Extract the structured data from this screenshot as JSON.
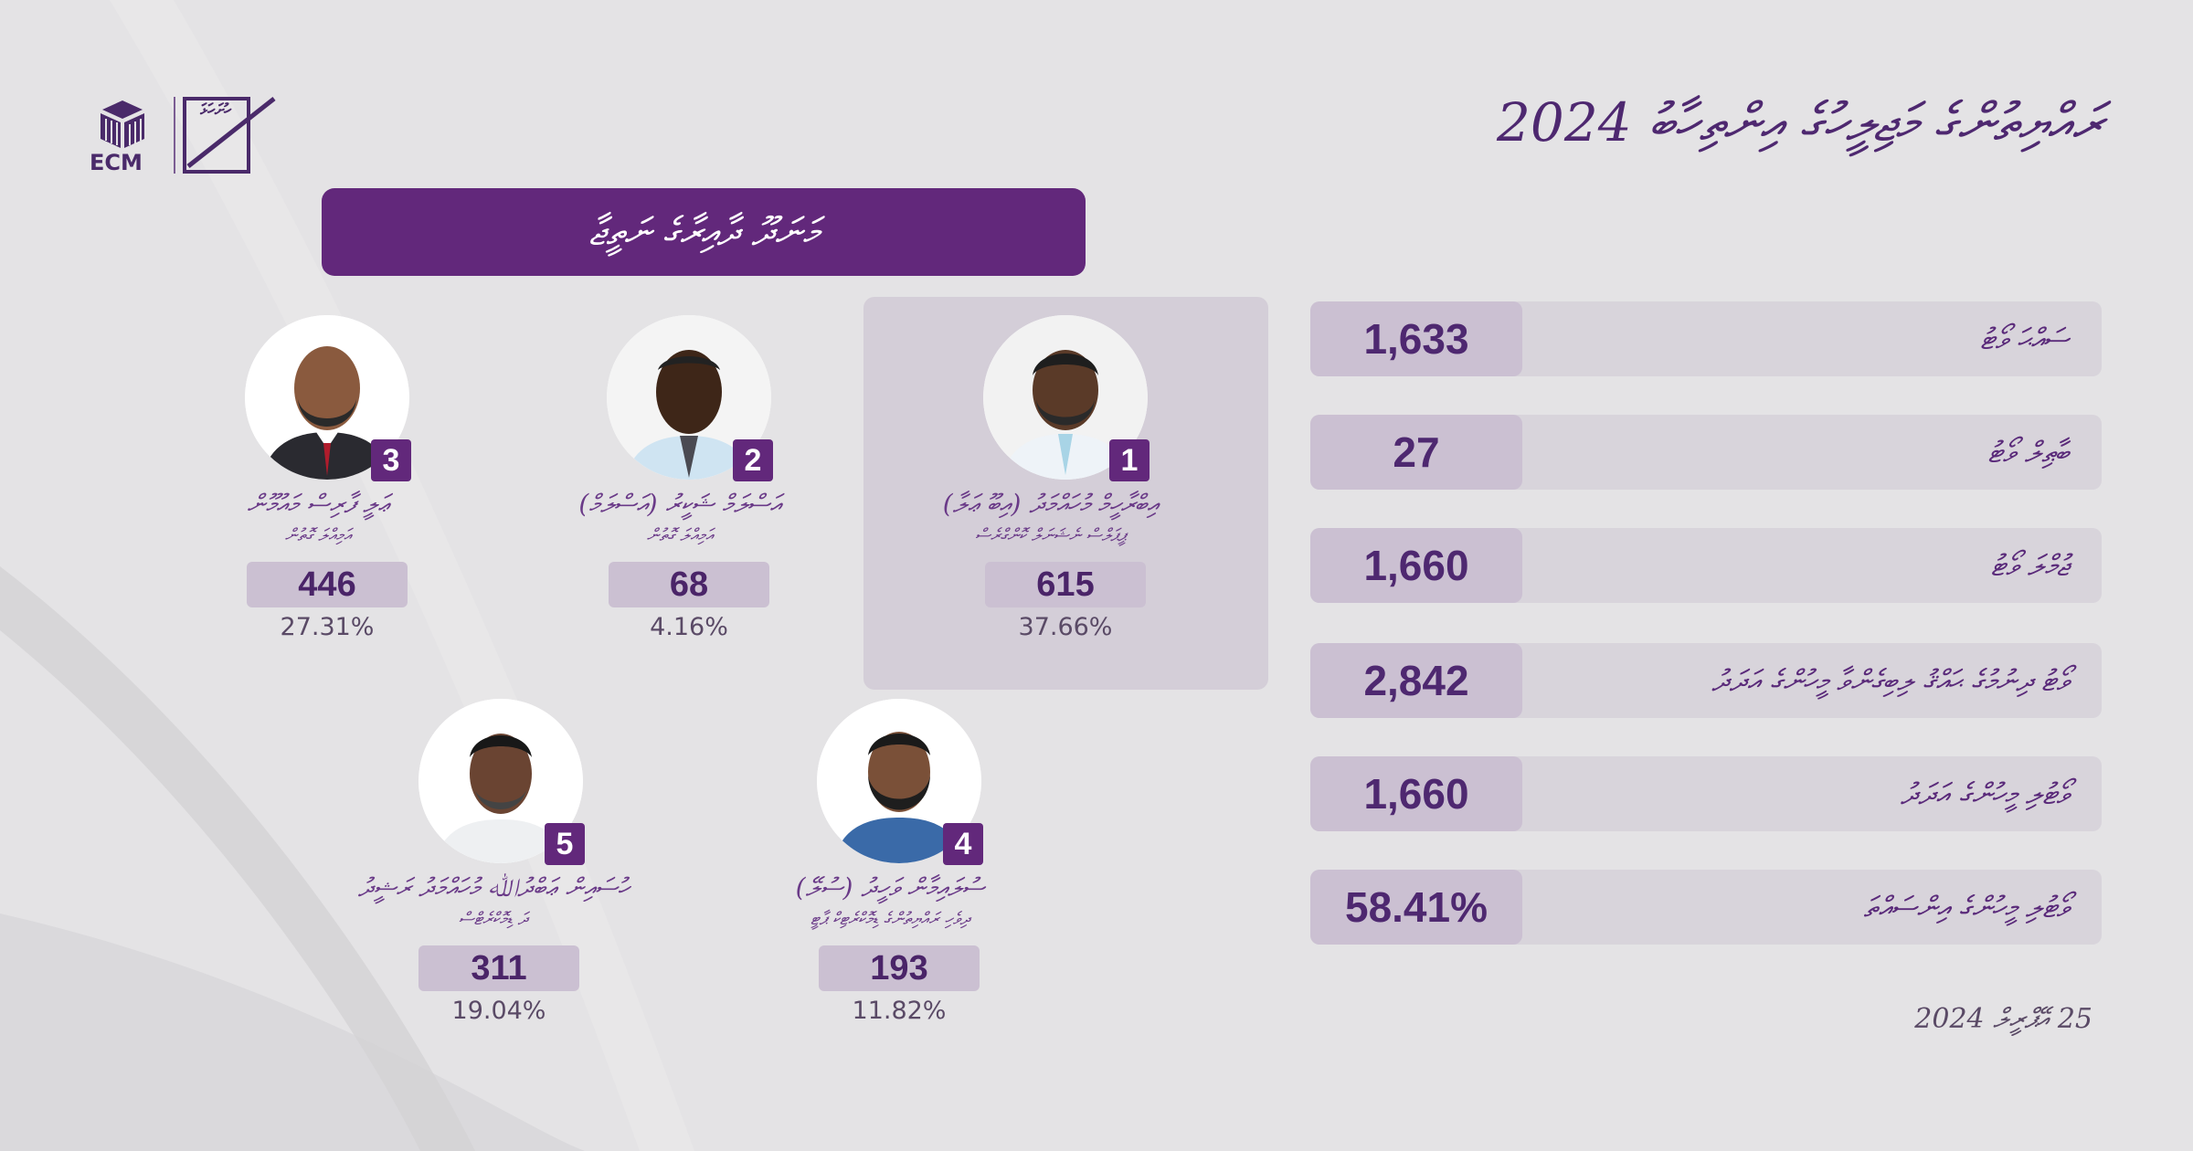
{
  "header": {
    "logo_text": "ECM",
    "logo_mark_text": "ހުށަހަޅަ",
    "title": "ރައްޔިތުންގެ މަޖިލީހުގެ އިންތިހާބު 2024",
    "subtitle": "މަނަދޫ ދާއިރާގެ ނަތީޖާ"
  },
  "candidates": [
    {
      "number": "1",
      "name": "އިބްރާހީމް މުހައްމަދު (އިބޫ ޢަލާ)",
      "party": "ޕީޕަލްސް ނެޝަނަލް ކޮންގްރެސް",
      "votes": "615",
      "percent": "37.66%",
      "winner": true
    },
    {
      "number": "2",
      "name": "އަސްލަމް ޝަކީރު (އަސްލަމް)",
      "party": "އަމިއްލަ ގޮތުން",
      "votes": "68",
      "percent": "4.16%",
      "winner": false
    },
    {
      "number": "3",
      "name": "ޢަލީ ފާރިސް މައުމޫން",
      "party": "އަމިއްލަ ގޮތުން",
      "votes": "446",
      "percent": "27.31%",
      "winner": false
    },
    {
      "number": "4",
      "name": "ސުލައިމާން ވަހީދު (ސުލޭ)",
      "party": "ދިވެހި ރައްޔިތުންގެ ޑިމޮކްރެޓިކް ޕާޓީ",
      "votes": "193",
      "percent": "11.82%",
      "winner": false
    },
    {
      "number": "5",
      "name": "ހުސައިން ޢަބްދުﷲ މުހައްމަދު ރަޝީދު",
      "party": "ދަ ޑިމޮކްރެޓްސް",
      "votes": "311",
      "percent": "19.04%",
      "winner": false
    }
  ],
  "stats": [
    {
      "label": "ސައްޙަ ވޯޓު",
      "value": "1,633"
    },
    {
      "label": "ބާޠިލް ވޯޓު",
      "value": "27"
    },
    {
      "label": "ޖުމްލަ ވޯޓު",
      "value": "1,660"
    },
    {
      "label": "ވޯޓު ދިނުމުގެ ޙައްޤު ލިބިގެންވާ މީހުންގެ އަދަދު",
      "value": "2,842"
    },
    {
      "label": "ވޯޓުލި މީހުންގެ އަދަދު",
      "value": "1,660"
    },
    {
      "label": "ވޯޓުލި މީހުންގެ އިންސައްތަ",
      "value": "58.41%"
    }
  ],
  "date": "25 އޭޕްރީލް 2024",
  "colors": {
    "brand": "#62287b",
    "panel": "#d4ced8",
    "badge": "#cbc0d2",
    "background": "#e4e3e5"
  }
}
